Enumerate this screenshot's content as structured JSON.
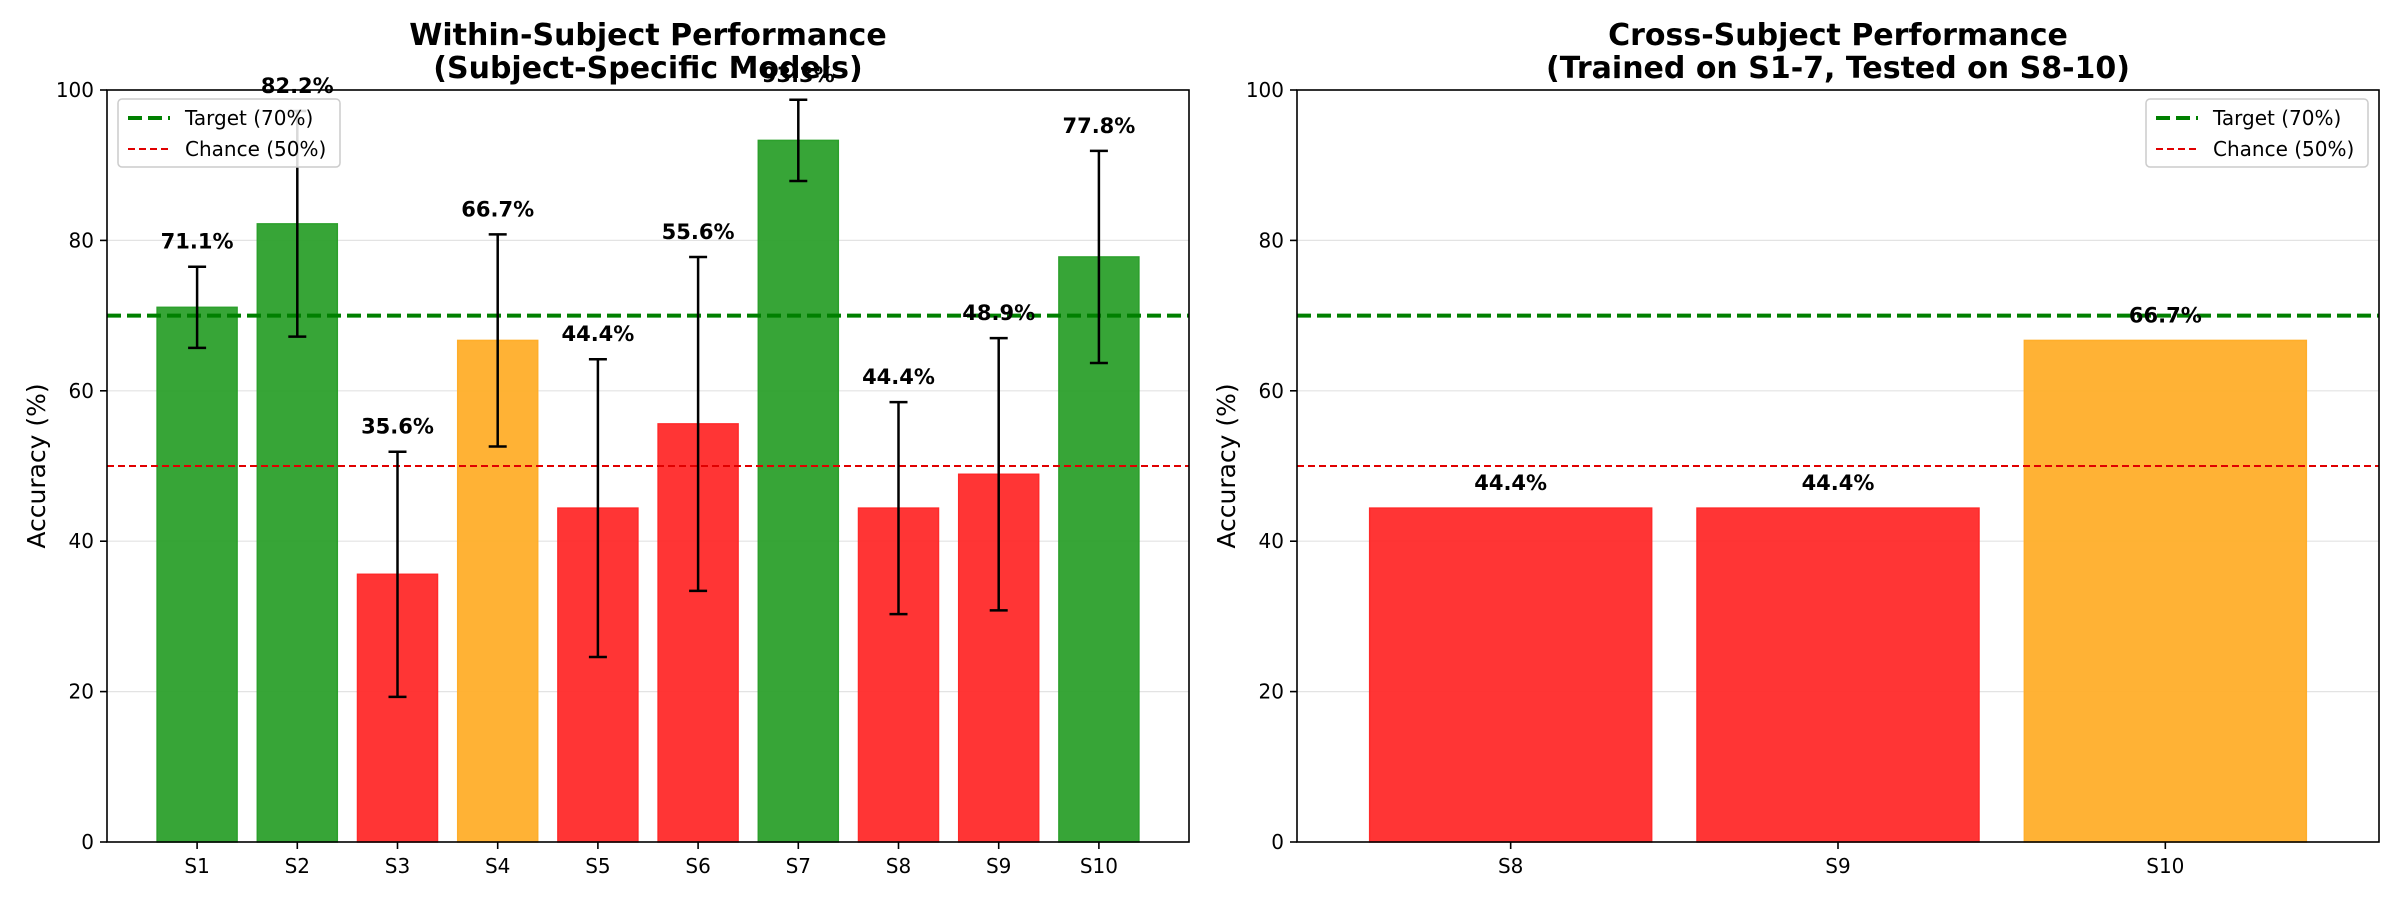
{
  "chart_data": [
    {
      "type": "bar",
      "title": "Within-Subject Performance\n(Subject-Specific Models)",
      "xlabel": "",
      "ylabel": "Accuracy (%)",
      "ylim": [
        0,
        100
      ],
      "yticks": [
        0,
        20,
        40,
        60,
        80,
        100
      ],
      "grid": "y",
      "legend_position": "top-left",
      "categories": [
        "S1",
        "S2",
        "S3",
        "S4",
        "S5",
        "S6",
        "S7",
        "S8",
        "S9",
        "S10"
      ],
      "values": [
        71.1,
        82.2,
        35.6,
        66.7,
        44.4,
        55.6,
        93.3,
        44.4,
        48.9,
        77.8
      ],
      "labels": [
        "71.1%",
        "82.2%",
        "35.6%",
        "66.7%",
        "44.4%",
        "55.6%",
        "93.3%",
        "44.4%",
        "48.9%",
        "77.8%"
      ],
      "errors": [
        5.4,
        15.0,
        16.3,
        14.1,
        19.8,
        22.2,
        5.4,
        14.1,
        18.1,
        14.1
      ],
      "bar_colors": [
        "#2ca02c",
        "#2ca02c",
        "#ff2a2a",
        "#ffae2a",
        "#ff2a2a",
        "#ff2a2a",
        "#2ca02c",
        "#ff2a2a",
        "#ff2a2a",
        "#2ca02c"
      ],
      "reference_lines": [
        {
          "name": "Target (70%)",
          "value": 70,
          "color": "#008000",
          "style": "dashed-thick"
        },
        {
          "name": "Chance (50%)",
          "value": 50,
          "color": "#e00000",
          "style": "dashed-thin"
        }
      ]
    },
    {
      "type": "bar",
      "title": "Cross-Subject Performance\n(Trained on S1-7, Tested on S8-10)",
      "xlabel": "",
      "ylabel": "Accuracy (%)",
      "ylim": [
        0,
        100
      ],
      "yticks": [
        0,
        20,
        40,
        60,
        80,
        100
      ],
      "grid": "y",
      "legend_position": "top-right",
      "categories": [
        "S8",
        "S9",
        "S10"
      ],
      "values": [
        44.4,
        44.4,
        66.7
      ],
      "labels": [
        "44.4%",
        "44.4%",
        "66.7%"
      ],
      "bar_colors": [
        "#ff2a2a",
        "#ff2a2a",
        "#ffae2a"
      ],
      "reference_lines": [
        {
          "name": "Target (70%)",
          "value": 70,
          "color": "#008000",
          "style": "dashed-thick"
        },
        {
          "name": "Chance (50%)",
          "value": 50,
          "color": "#e00000",
          "style": "dashed-thin"
        }
      ]
    }
  ]
}
